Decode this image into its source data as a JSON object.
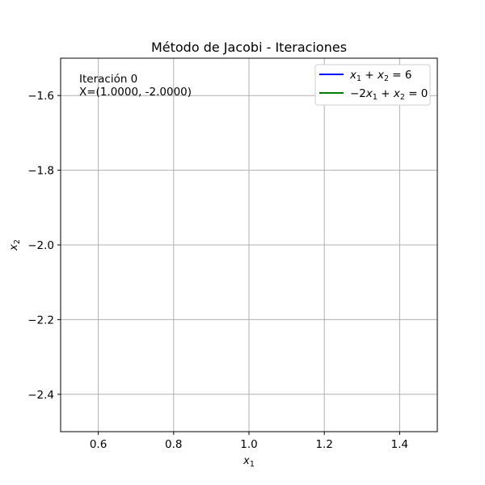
{
  "chart_data": {
    "type": "line",
    "title": "Método de Jacobi - Iteraciones",
    "xlabel": "x1",
    "ylabel": "x2",
    "xlim": [
      0.5,
      1.5
    ],
    "ylim": [
      -2.5,
      -1.5
    ],
    "x_ticks": [
      0.6,
      0.8,
      1.0,
      1.2,
      1.4
    ],
    "x_tick_labels": [
      "0.6",
      "0.8",
      "1.0",
      "1.2",
      "1.4"
    ],
    "y_ticks": [
      -1.6,
      -1.8,
      -2.0,
      -2.2,
      -2.4
    ],
    "y_tick_labels": [
      "−1.6",
      "−1.8",
      "−2.0",
      "−2.2",
      "−2.4"
    ],
    "grid": true,
    "legend_position": "top-right",
    "series": [
      {
        "name": "x1 + x2 = 6",
        "color": "#0000ff",
        "equation": {
          "a": 1,
          "b": 1,
          "c": 6
        }
      },
      {
        "name": "−2x1 + x2 = 0",
        "color": "#008000",
        "equation": {
          "a": -2,
          "b": 1,
          "c": 0
        }
      }
    ],
    "annotation": {
      "lines": [
        "Iteración 0",
        "X=(1.0000, -2.0000)"
      ]
    }
  }
}
